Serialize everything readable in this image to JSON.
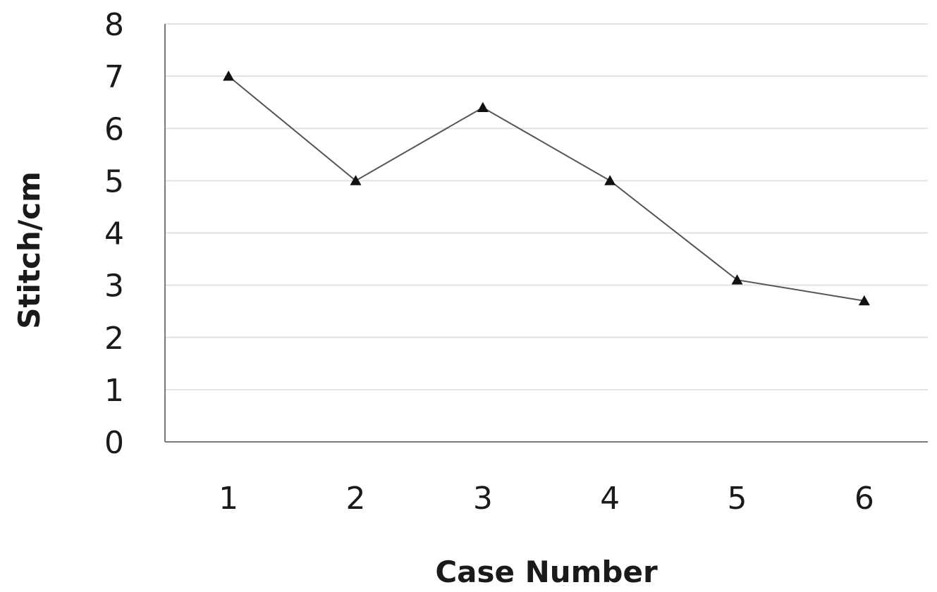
{
  "chart_data": {
    "type": "line",
    "title": "",
    "xlabel": "Case Number",
    "ylabel": "Stitch/cm",
    "categories": [
      "1",
      "2",
      "3",
      "4",
      "5",
      "6"
    ],
    "series": [
      {
        "values": [
          7.0,
          5.0,
          6.4,
          5.0,
          3.1,
          2.7
        ],
        "marker": "triangle",
        "color": "#555555"
      }
    ],
    "ylim": [
      0,
      8
    ],
    "yticks": [
      "0",
      "1",
      "2",
      "3",
      "4",
      "5",
      "6",
      "7",
      "8"
    ],
    "grid": true,
    "legend": "none"
  }
}
